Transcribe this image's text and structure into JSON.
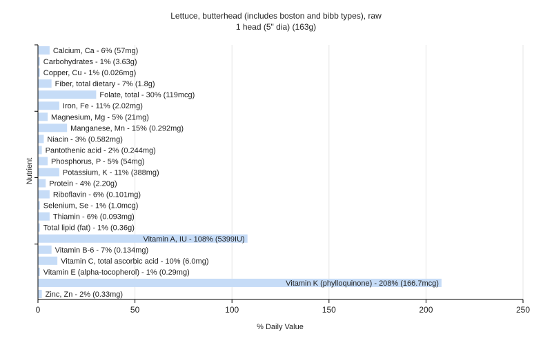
{
  "chart_data": {
    "type": "bar",
    "orientation": "horizontal",
    "title": "Lettuce, butterhead (includes boston and bibb types), raw",
    "subtitle": "1 head (5\" dia) (163g)",
    "xlabel": "% Daily Value",
    "ylabel": "Nutrient",
    "xlim": [
      0,
      250
    ],
    "xticks": [
      0,
      50,
      100,
      150,
      200,
      250
    ],
    "grid": true,
    "bar_color": "#c6dcf7",
    "grid_color": "#e5e5e5",
    "categories": [
      "Calcium, Ca",
      "Carbohydrates",
      "Copper, Cu",
      "Fiber, total dietary",
      "Folate, total",
      "Iron, Fe",
      "Magnesium, Mg",
      "Manganese, Mn",
      "Niacin",
      "Pantothenic acid",
      "Phosphorus, P",
      "Potassium, K",
      "Protein",
      "Riboflavin",
      "Selenium, Se",
      "Thiamin",
      "Total lipid (fat)",
      "Vitamin A, IU",
      "Vitamin B-6",
      "Vitamin C, total ascorbic acid",
      "Vitamin E (alpha-tocopherol)",
      "Vitamin K (phylloquinone)",
      "Zinc, Zn"
    ],
    "values": [
      6,
      1,
      1,
      7,
      30,
      11,
      5,
      15,
      3,
      2,
      5,
      11,
      4,
      6,
      1,
      6,
      1,
      108,
      7,
      10,
      1,
      208,
      2
    ],
    "labels": [
      "Calcium, Ca - 6% (57mg)",
      "Carbohydrates - 1% (3.63g)",
      "Copper, Cu - 1% (0.026mg)",
      "Fiber, total dietary - 7% (1.8g)",
      "Folate, total - 30% (119mcg)",
      "Iron, Fe - 11% (2.02mg)",
      "Magnesium, Mg - 5% (21mg)",
      "Manganese, Mn - 15% (0.292mg)",
      "Niacin - 3% (0.582mg)",
      "Pantothenic acid - 2% (0.244mg)",
      "Phosphorus, P - 5% (54mg)",
      "Potassium, K - 11% (388mg)",
      "Protein - 4% (2.20g)",
      "Riboflavin - 6% (0.101mg)",
      "Selenium, Se - 1% (1.0mcg)",
      "Thiamin - 6% (0.093mg)",
      "Total lipid (fat) - 1% (0.36g)",
      "Vitamin A, IU - 108% (5399IU)",
      "Vitamin B-6 - 7% (0.134mg)",
      "Vitamin C, total ascorbic acid - 10% (6.0mg)",
      "Vitamin E (alpha-tocopherol) - 1% (0.29mg)",
      "Vitamin K (phylloquinone) - 208% (166.7mcg)",
      "Zinc, Zn - 2% (0.33mg)"
    ]
  }
}
